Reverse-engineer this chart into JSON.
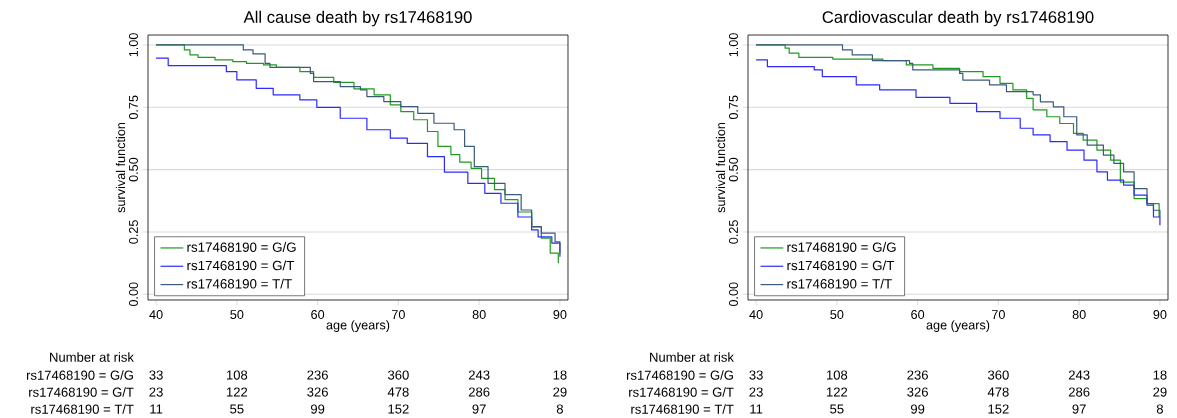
{
  "chart_data": [
    {
      "type": "step",
      "title": "All cause death by rs17468190",
      "xlabel": "age (years)",
      "ylabel": "survival function",
      "xlim": [
        39,
        91
      ],
      "ylim": [
        -0.023,
        1.04
      ],
      "xticks": [
        40,
        50,
        60,
        70,
        80,
        90
      ],
      "yticks": [
        {
          "value": 0,
          "label": "0.00"
        },
        {
          "value": 0.25,
          "label": "0.25"
        },
        {
          "value": 0.5,
          "label": "0.50"
        },
        {
          "value": 0.75,
          "label": "0.75"
        },
        {
          "value": 1,
          "label": "1.00"
        }
      ],
      "grid": "y",
      "legend": "bottom left",
      "series": [
        {
          "name": "rs17468190 = G/G",
          "color": "#1f9a1f",
          "x": [
            40,
            43.5,
            44.2,
            45.2,
            47.3,
            49.5,
            51.2,
            53.3,
            54.9,
            57.8,
            59.5,
            62,
            64.5,
            67,
            69,
            70.3,
            71.9,
            73.6,
            74.9,
            76.5,
            77.6,
            79,
            80.3,
            81.9,
            83.2,
            84.8,
            86.5,
            87.7,
            88.8,
            89.8
          ],
          "values": [
            1.0,
            0.98,
            0.96,
            0.95,
            0.94,
            0.933,
            0.926,
            0.92,
            0.91,
            0.893,
            0.87,
            0.85,
            0.824,
            0.8,
            0.76,
            0.733,
            0.7,
            0.653,
            0.593,
            0.56,
            0.53,
            0.505,
            0.465,
            0.42,
            0.38,
            0.33,
            0.27,
            0.225,
            0.165,
            0.124
          ]
        },
        {
          "name": "rs17468190 = G/T",
          "color": "#2b2bff",
          "x": [
            40,
            41.5,
            47.3,
            48.7,
            50,
            52.4,
            54.5,
            57.8,
            59.9,
            62.8,
            66.1,
            69,
            71.1,
            73.6,
            75.7,
            78.6,
            80.7,
            82.7,
            84.8,
            86.5,
            87.3,
            89,
            90
          ],
          "values": [
            0.947,
            0.917,
            0.917,
            0.893,
            0.86,
            0.826,
            0.8,
            0.78,
            0.75,
            0.706,
            0.66,
            0.626,
            0.605,
            0.552,
            0.49,
            0.445,
            0.405,
            0.365,
            0.31,
            0.258,
            0.23,
            0.205,
            0.15
          ]
        },
        {
          "name": "rs17468190 = T/T",
          "color": "#3a5a7c",
          "x": [
            40,
            50.8,
            52,
            53.5,
            54.1,
            59.1,
            59.5,
            62.8,
            65.3,
            66.1,
            68.2,
            70.3,
            72.4,
            74.4,
            76.9,
            78.2,
            79.4,
            81.1,
            83.2,
            85.2,
            86.5,
            87.7,
            89.4,
            90
          ],
          "values": [
            1.0,
            0.98,
            0.964,
            0.926,
            0.91,
            0.886,
            0.853,
            0.833,
            0.82,
            0.793,
            0.773,
            0.753,
            0.726,
            0.686,
            0.66,
            0.593,
            0.512,
            0.445,
            0.4,
            0.338,
            0.271,
            0.245,
            0.21,
            0.165
          ]
        }
      ],
      "annotations": [
        "Number at risk",
        "rs17468190 = G/G",
        "33",
        "108",
        "236",
        "360",
        "243",
        "18",
        "rs17468190 = G/T",
        "23",
        "122",
        "326",
        "478",
        "286",
        "29",
        "rs17468190 = T/T",
        "11",
        "55",
        "99",
        "152",
        "97",
        "8"
      ]
    },
    {
      "type": "step",
      "title": "Cardiovascular death by rs17468190",
      "xlabel": "age (years)",
      "ylabel": "survival function",
      "xlim": [
        39,
        91
      ],
      "ylim": [
        -0.023,
        1.04
      ],
      "xticks": [
        40,
        50,
        60,
        70,
        80,
        90
      ],
      "yticks": [
        {
          "value": 0,
          "label": "0.00"
        },
        {
          "value": 0.25,
          "label": "0.25"
        },
        {
          "value": 0.5,
          "label": "0.50"
        },
        {
          "value": 0.75,
          "label": "0.75"
        },
        {
          "value": 1,
          "label": "1.00"
        }
      ],
      "grid": "y",
      "legend": "bottom left",
      "series": [
        {
          "name": "rs17468190 = G/G",
          "color": "#1f9a1f",
          "x": [
            40,
            43.6,
            44.1,
            45.3,
            49.5,
            55.7,
            58.6,
            61.9,
            65.2,
            68.1,
            70.2,
            71.8,
            73.5,
            74.3,
            76,
            77.6,
            79.3,
            80.5,
            82.2,
            83.9,
            85.1,
            86.8,
            88.4,
            89.9
          ],
          "values": [
            1.0,
            0.987,
            0.967,
            0.95,
            0.943,
            0.937,
            0.92,
            0.906,
            0.893,
            0.873,
            0.846,
            0.82,
            0.786,
            0.74,
            0.712,
            0.685,
            0.645,
            0.618,
            0.578,
            0.538,
            0.45,
            0.384,
            0.364,
            0.31
          ]
        },
        {
          "name": "rs17468190 = G/T",
          "color": "#2b2bff",
          "x": [
            40,
            41.4,
            47.2,
            48.2,
            52.4,
            55.3,
            59.8,
            64,
            67.3,
            70.2,
            72.7,
            74.3,
            76.4,
            78.5,
            80.6,
            82.2,
            83.5,
            85.5,
            86.8,
            88.4,
            89.2,
            90
          ],
          "values": [
            0.94,
            0.913,
            0.9,
            0.873,
            0.84,
            0.82,
            0.79,
            0.766,
            0.733,
            0.706,
            0.666,
            0.639,
            0.612,
            0.578,
            0.538,
            0.491,
            0.458,
            0.438,
            0.398,
            0.357,
            0.31,
            0.277
          ]
        },
        {
          "name": "rs17468190 = T/T",
          "color": "#3a5a7c",
          "x": [
            40,
            50.7,
            51.9,
            54.4,
            59,
            59.4,
            65.2,
            65.6,
            68.9,
            71,
            74.3,
            75.2,
            76.8,
            78.1,
            79.7,
            81,
            83,
            84.3,
            85.5,
            86.8,
            88.4,
            89.2,
            90
          ],
          "values": [
            1.0,
            0.98,
            0.96,
            0.937,
            0.926,
            0.9,
            0.886,
            0.859,
            0.84,
            0.813,
            0.8,
            0.772,
            0.752,
            0.712,
            0.639,
            0.598,
            0.558,
            0.525,
            0.491,
            0.424,
            0.364,
            0.337,
            0.31
          ]
        }
      ],
      "annotations": [
        "Number at risk",
        "rs17468190 = G/G",
        "33",
        "108",
        "236",
        "360",
        "243",
        "18",
        "rs17468190 = G/T",
        "23",
        "122",
        "326",
        "478",
        "286",
        "29",
        "rs17468190 = T/T",
        "11",
        "55",
        "99",
        "152",
        "97",
        "8"
      ]
    }
  ]
}
